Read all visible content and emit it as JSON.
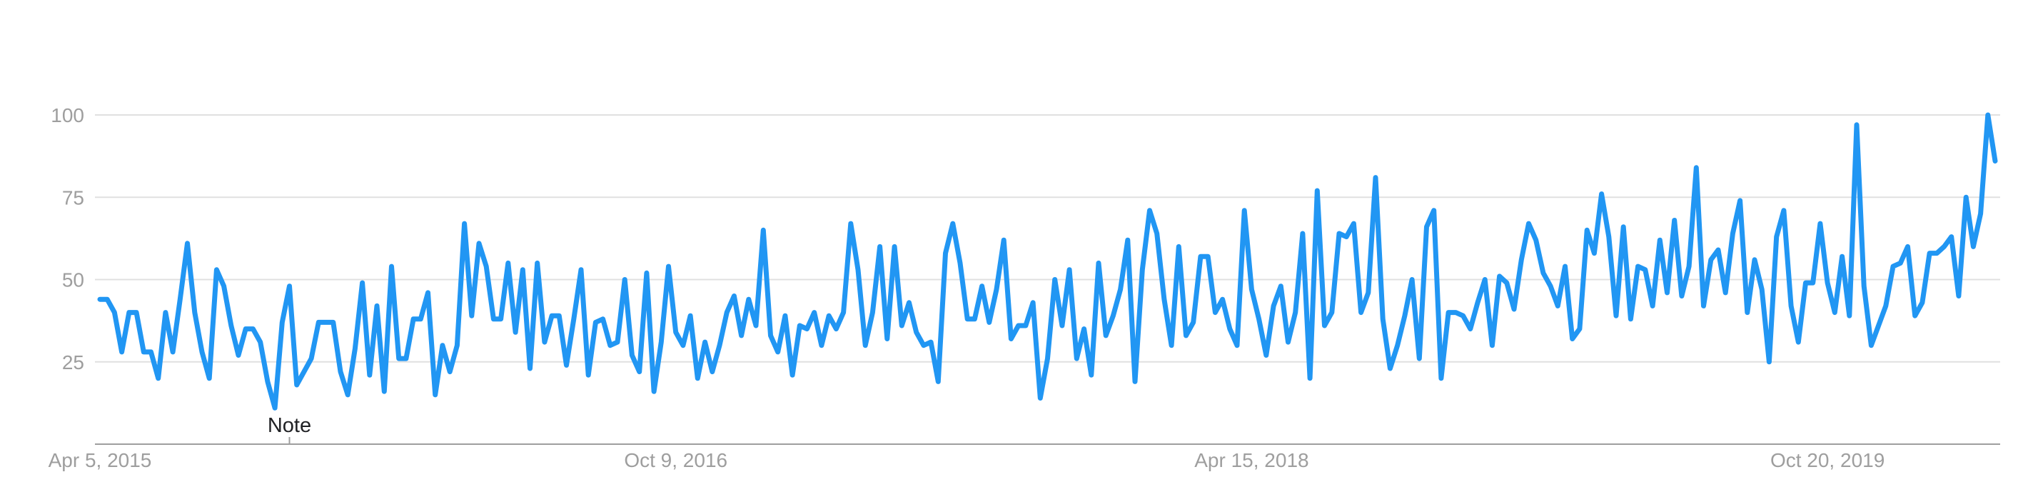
{
  "chart_data": {
    "type": "line",
    "title": "",
    "xlabel": "",
    "ylabel": "",
    "x_start": "2015-04-05",
    "x_end": "2020-03-29",
    "x_ticks": [
      "Apr 5, 2015",
      "Oct 9, 2016",
      "Apr 15, 2018",
      "Oct 20, 2019"
    ],
    "x_tick_dates": [
      "2015-04-05",
      "2016-10-09",
      "2018-04-15",
      "2019-10-20"
    ],
    "y_ticks": [
      25,
      50,
      75,
      100
    ],
    "ylim": [
      0,
      100
    ],
    "grid": true,
    "legend": "none",
    "annotation": {
      "text": "Note",
      "date": "2015-10-04"
    },
    "line_color": "#2196f3",
    "series": [
      {
        "values": [
          44,
          44,
          40,
          28,
          40,
          40,
          28,
          28,
          20,
          40,
          28,
          44,
          61,
          40,
          28,
          20,
          53,
          48,
          36,
          27,
          35,
          35,
          31,
          19,
          11,
          37,
          48,
          18,
          22,
          26,
          37,
          37,
          37,
          22,
          15,
          29,
          49,
          21,
          42,
          16,
          54,
          26,
          26,
          38,
          38,
          46,
          15,
          30,
          22,
          30,
          67,
          39,
          61,
          54,
          38,
          38,
          55,
          34,
          53,
          23,
          55,
          31,
          39,
          39,
          24,
          38,
          53,
          21,
          37,
          38,
          30,
          31,
          50,
          27,
          22,
          52,
          16,
          31,
          54,
          34,
          30,
          39,
          20,
          31,
          22,
          30,
          40,
          45,
          33,
          44,
          36,
          65,
          33,
          28,
          39,
          21,
          36,
          35,
          40,
          30,
          39,
          35,
          40,
          67,
          53,
          30,
          40,
          60,
          32,
          60,
          36,
          43,
          34,
          30,
          31,
          19,
          58,
          67,
          55,
          38,
          38,
          48,
          37,
          47,
          62,
          32,
          36,
          36,
          43,
          14,
          26,
          50,
          36,
          53,
          26,
          35,
          21,
          55,
          33,
          39,
          47,
          62,
          19,
          53,
          71,
          64,
          44,
          30,
          60,
          33,
          37,
          57,
          57,
          40,
          44,
          35,
          30,
          71,
          47,
          38,
          27,
          42,
          48,
          31,
          40,
          64,
          20,
          77,
          36,
          40,
          64,
          63,
          67,
          40,
          46,
          81,
          38,
          23,
          30,
          39,
          50,
          26,
          66,
          71,
          20,
          40,
          40,
          39,
          35,
          43,
          50,
          30,
          51,
          49,
          41,
          56,
          67,
          62,
          52,
          48,
          42,
          54,
          32,
          35,
          65,
          58,
          76,
          63,
          39,
          66,
          38,
          54,
          53,
          42,
          62,
          46,
          68,
          45,
          54,
          84,
          42,
          56,
          59,
          46,
          64,
          74,
          40,
          56,
          47,
          25,
          63,
          71,
          42,
          31,
          49,
          49,
          67,
          49,
          40,
          57,
          39,
          97,
          48,
          30,
          36,
          42,
          54,
          55,
          60,
          39,
          43,
          58,
          58,
          60,
          63,
          45,
          75,
          60,
          70,
          100,
          86
        ]
      }
    ]
  }
}
